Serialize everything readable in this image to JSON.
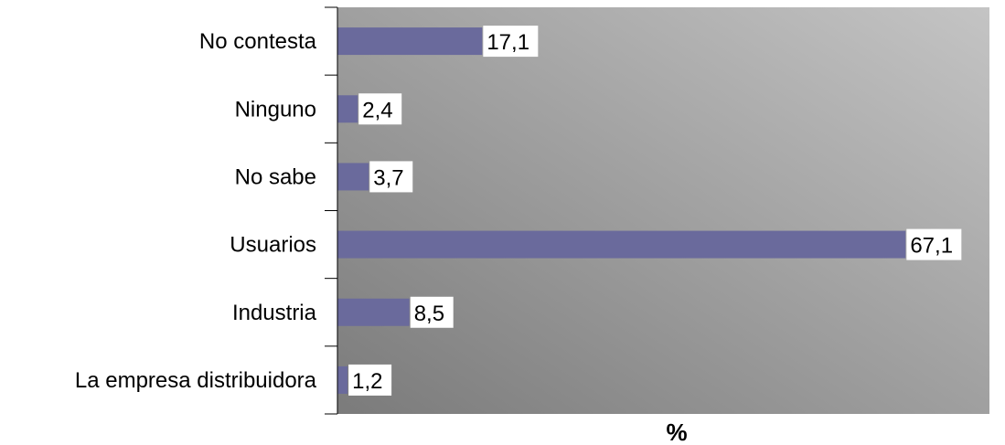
{
  "chart_data": {
    "type": "bar",
    "orientation": "horizontal",
    "categories": [
      "No contesta",
      "Ninguno",
      "No sabe",
      "Usuarios",
      "Industria",
      "La empresa distribuidora"
    ],
    "values": [
      17.1,
      2.4,
      3.7,
      67.1,
      8.5,
      1.2
    ],
    "data_labels": [
      "17,1",
      "2,4",
      "3,7",
      "67,1",
      "8,5",
      "1,2"
    ],
    "xlabel": "%",
    "xlim": [
      0,
      77
    ],
    "grid": false,
    "legend": "none",
    "colors": {
      "bar": "#6a6a9c",
      "plot_bg_start": "#c4c4c4",
      "plot_bg_end": "#7b7b7b"
    }
  }
}
